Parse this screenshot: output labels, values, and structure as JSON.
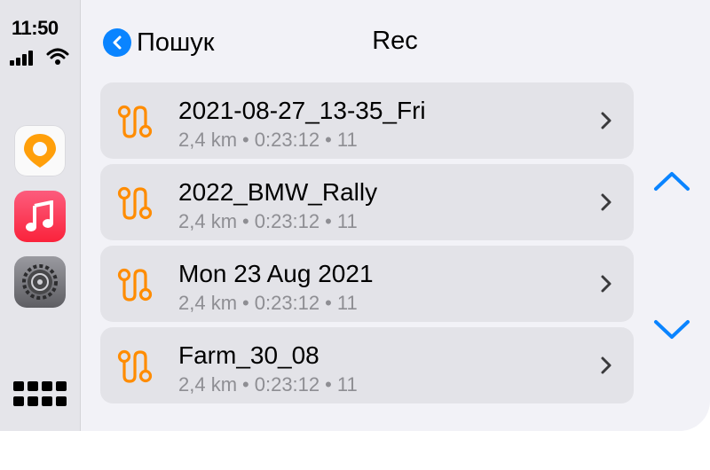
{
  "status": {
    "time": "11:50"
  },
  "header": {
    "back_label": "Пошук",
    "title": "Rec"
  },
  "tracks": [
    {
      "name": "2021-08-27_13-35_Fri",
      "distance": "2,4 km",
      "duration": "0:23:12",
      "points": "11"
    },
    {
      "name": "2022_BMW_Rally",
      "distance": "2,4 km",
      "duration": "0:23:12",
      "points": "11"
    },
    {
      "name": "Mon 23 Aug 2021",
      "distance": "2,4 km",
      "duration": "0:23:12",
      "points": "11"
    },
    {
      "name": "Farm_30_08",
      "distance": "2,4 km",
      "duration": "0:23:12",
      "points": "11"
    }
  ],
  "separator": "•",
  "colors": {
    "accent_blue": "#0a84ff",
    "track_orange": "#ff8c00",
    "subtitle_gray": "#8e8e93"
  },
  "icons": {
    "dock": [
      "osmand-app-icon",
      "music-app-icon",
      "settings-app-icon",
      "app-grid-icon"
    ],
    "row": "route-icon",
    "row_action": "chevron-right-icon",
    "scroll": [
      "chevron-up-icon",
      "chevron-down-icon"
    ]
  }
}
